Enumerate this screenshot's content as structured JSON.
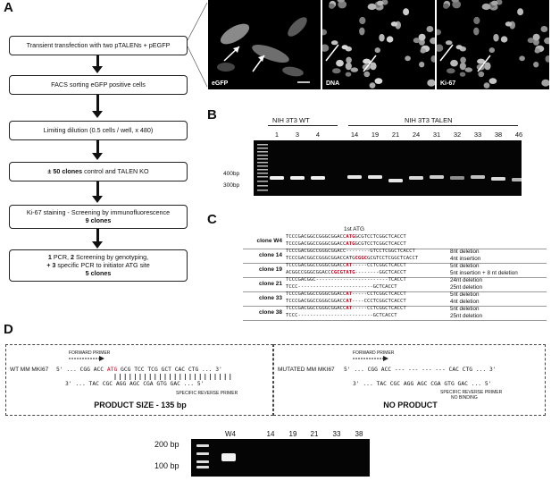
{
  "panels": {
    "a": "A",
    "b": "B",
    "c": "C",
    "d": "D"
  },
  "flow": {
    "step1": "Transient transfection with two pTALENs + pEGFP",
    "step2": "FACS sorting eGFP positive cells",
    "step3": "Limiting dilution (0.5 cells / well, x 480)",
    "step4_bold": "± 50 clones",
    "step4_rest": " control and TALEN KO",
    "step5_line1": "Ki-67 staining - Screening by immunofluorescence",
    "step5_line2": "9 clones",
    "step6_n1": "1",
    "step6_t1": " PCR, ",
    "step6_n2": "2",
    "step6_t2": " Screening by genotyping,",
    "step6_n3": "+ 3",
    "step6_t3": " specific PCR  to initiator ATG site",
    "step6_line3": "5 clones"
  },
  "micrographs": {
    "egfp": "eGFP",
    "dna": "DNA",
    "ki67": "Ki-67"
  },
  "gelB": {
    "group_wt": "NIH 3T3 WT",
    "group_talen": "NIH 3T3 TALEN",
    "lanes_wt": [
      "1",
      "3",
      "4"
    ],
    "lanes_talen": [
      "14",
      "19",
      "21",
      "24",
      "31",
      "32",
      "33",
      "38",
      "46"
    ],
    "marker_400": "400bp",
    "marker_300": "300bp"
  },
  "sequences": {
    "header": "1st ATG",
    "rows": [
      {
        "clone": "clone W4",
        "seqs": [
          {
            "pre": "TCCCGACGGCCGGGCGGACC",
            "red": "ATG",
            "post": "GCGTCCTCGGCTCACCT"
          },
          {
            "pre": "TCCCGACGGCCGGGCGGACC",
            "red": "ATG",
            "post": "GCGTCCTCGGCTCACCT"
          }
        ],
        "notes": [
          "",
          ""
        ]
      },
      {
        "clone": "clone 14",
        "seqs": [
          {
            "pre": "TCCCGACGGCCGGGCGGACC",
            "red": "",
            "post": "--------GTCCTCGGCTCACCT"
          },
          {
            "pre": "TCCCGACGGCCGGGCGGACCATG",
            "red": "CGGC",
            "post": "GCGTCCTCGGCTCACCT"
          }
        ],
        "notes": [
          "8nt deletion",
          "4nt insertion"
        ]
      },
      {
        "clone": "clone 19",
        "seqs": [
          {
            "pre": "TCCCGACGGCCGGGCGGACC",
            "red": "AT",
            "post": "-----CCTCGGCTCACCT"
          },
          {
            "pre": "ACGGCCGGGCGGACC",
            "red": "CGCGTATG",
            "post": "--------GGCTCACCT"
          }
        ],
        "notes": [
          "5nt deletion",
          "5nt insertion + 8 nt deletion"
        ]
      },
      {
        "clone": "clone 21",
        "seqs": [
          {
            "pre": "TCCCGACGGC",
            "red": "",
            "post": "------------------------TCACCT"
          },
          {
            "pre": "TCCC",
            "red": "",
            "post": "-------------------------GCTCACCT"
          }
        ],
        "notes": [
          "24nt deletion",
          "25nt deletion"
        ]
      },
      {
        "clone": "clone 33",
        "seqs": [
          {
            "pre": "TCCCGACGGCCGGGCGGACC",
            "red": "AT",
            "post": "-----CCTCGGCTCACCT"
          },
          {
            "pre": "TCCCGACGGCCGGGCGGACC",
            "red": "AT",
            "post": "----CCCTCGGCTCACCT"
          }
        ],
        "notes": [
          "5nt deletion",
          "4nt deletion"
        ]
      },
      {
        "clone": "clone 38",
        "seqs": [
          {
            "pre": "TCCCGACGGCCGGGCGGACC",
            "red": "AT",
            "post": "-----CCTCGGCTCACCT"
          },
          {
            "pre": "TCCC",
            "red": "",
            "post": "-------------------------GCTCACCT"
          }
        ],
        "notes": [
          "5nt deletion",
          "25nt deletion"
        ]
      }
    ]
  },
  "panelD": {
    "forward_primer": "FORWARD PRIMER",
    "wt_label": "WT MM MKI67",
    "wt_top_a": "5' ... CGG ACC ",
    "wt_top_atg": "ATG",
    "wt_top_b": " GCG TCC TCG GCT CAC CTG ... 3'",
    "wt_bottom": "3' ... TAC CGC AGG AGC CGA GTG GAC ... 5'",
    "reverse_primer": "SPECIFIC REVERSE PRIMER",
    "product_size": "PRODUCT SIZE - 135 bp",
    "mut_label": "MUTATED MM MKI67",
    "mut_top": "5' ... CGG ACC --- --- --- --- CAC CTG ... 3'",
    "mut_bottom": "3' ... TAC CGC AGG AGC CGA GTG GAC ... 5'",
    "mut_reverse": "SPECIFIC REVERSE PRIMER",
    "no_binding": "NO BINDING",
    "no_product": "NO PRODUCT"
  },
  "gelD": {
    "marker_200": "200 bp",
    "marker_100": "100 bp",
    "lanes": [
      "W4",
      "14",
      "19",
      "21",
      "33",
      "38"
    ]
  }
}
